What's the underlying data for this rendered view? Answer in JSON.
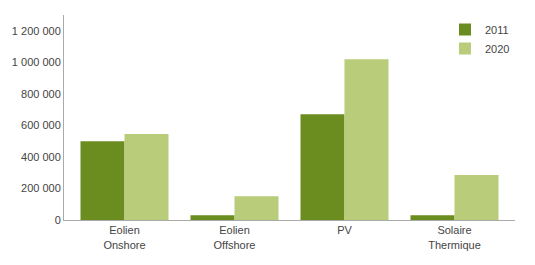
{
  "chart_data": {
    "type": "bar",
    "categories": [
      "Eolien\nOnshore",
      "Eolien\nOffshore",
      "PV",
      "Solaire\nThermique"
    ],
    "series": [
      {
        "name": "2011",
        "color": "#6b8c1e",
        "values": [
          500000,
          30000,
          670000,
          30000
        ]
      },
      {
        "name": "2020",
        "color": "#b8cc7a",
        "values": [
          545000,
          150000,
          1020000,
          285000
        ]
      }
    ],
    "ylim": [
      0,
      1300000
    ],
    "yticks": [
      0,
      {
        "value": 200000,
        "label": "200 000"
      },
      {
        "value": 400000,
        "label": "400 000"
      },
      {
        "value": 600000,
        "label": "600 000"
      },
      {
        "value": 800000,
        "label": "800 000"
      },
      {
        "value": 1000000,
        "label": "1 000 000"
      },
      {
        "value": 1200000,
        "label": "1 200 000"
      }
    ],
    "grid": false,
    "legend": "upper right"
  }
}
